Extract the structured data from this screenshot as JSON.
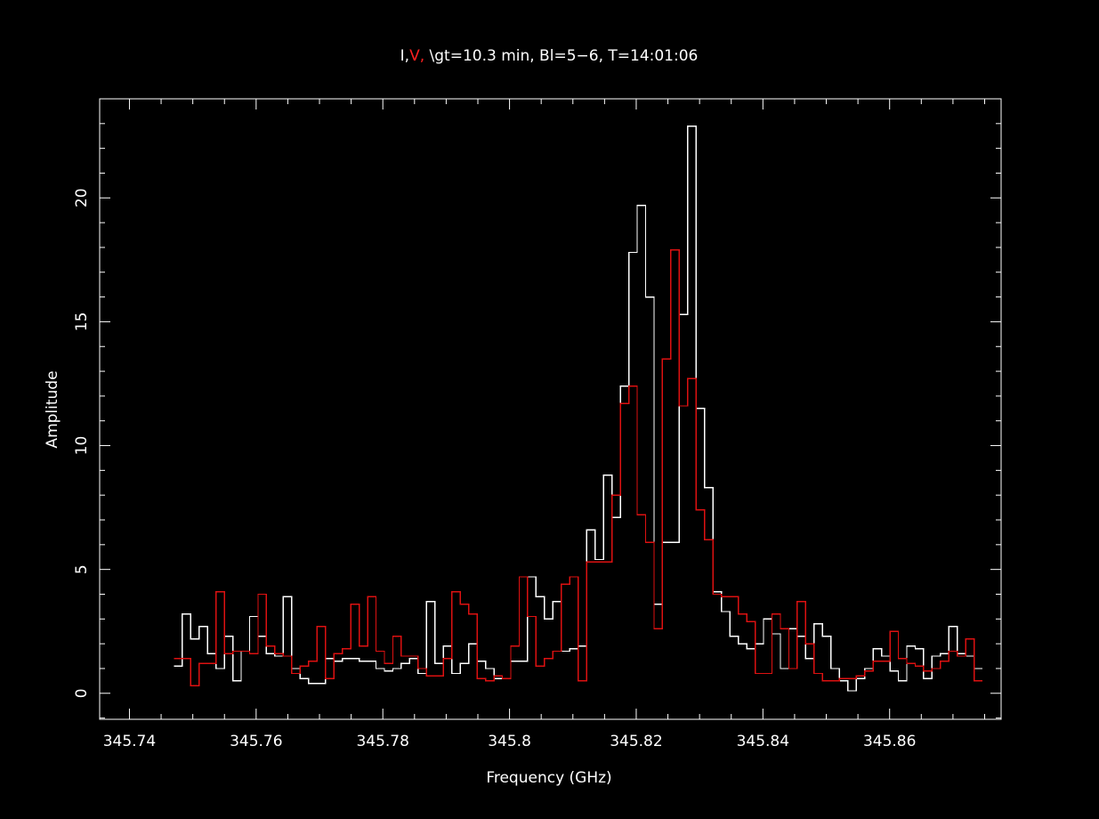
{
  "chart_data": {
    "type": "line",
    "style": "step",
    "background": "#000000",
    "title": {
      "parts": [
        {
          "text": "I,",
          "color": "#ffffff"
        },
        {
          "text": "V,",
          "color": "#ff2020"
        },
        {
          "text": " \\gt=10.3 min, Bl=5−6, T=14:01:06",
          "color": "#ffffff"
        }
      ]
    },
    "xlabel": "Frequency (GHz)",
    "ylabel": "Amplitude",
    "xlim": [
      345.7353,
      345.8776
    ],
    "ylim": [
      -1.05,
      24.0
    ],
    "xticks": [
      {
        "value": 345.74,
        "label": "345.74"
      },
      {
        "value": 345.76,
        "label": "345.76"
      },
      {
        "value": 345.78,
        "label": "345.78"
      },
      {
        "value": 345.8,
        "label": "345.8"
      },
      {
        "value": 345.82,
        "label": "345.82"
      },
      {
        "value": 345.84,
        "label": "345.84"
      },
      {
        "value": 345.86,
        "label": "345.86"
      }
    ],
    "yticks": [
      {
        "value": 0,
        "label": "0"
      },
      {
        "value": 5,
        "label": "5"
      },
      {
        "value": 10,
        "label": "10"
      },
      {
        "value": 15,
        "label": "15"
      },
      {
        "value": 20,
        "label": "20"
      }
    ],
    "x_start": 345.747,
    "x_step": 0.00133,
    "series": [
      {
        "name": "I",
        "color": "#ffffff",
        "values": [
          1.1,
          3.2,
          2.2,
          2.7,
          1.6,
          1.0,
          2.3,
          0.5,
          1.7,
          3.1,
          2.3,
          1.6,
          1.5,
          3.9,
          1.0,
          0.6,
          0.4,
          0.4,
          1.4,
          1.3,
          1.4,
          1.4,
          1.3,
          1.3,
          1.0,
          0.9,
          1.0,
          1.2,
          1.4,
          0.8,
          3.7,
          1.2,
          1.9,
          0.8,
          1.2,
          2.0,
          1.3,
          1.0,
          0.6,
          0.6,
          1.3,
          1.3,
          4.7,
          3.9,
          3.0,
          3.7,
          1.7,
          1.8,
          1.9,
          6.6,
          5.4,
          8.8,
          7.1,
          12.4,
          17.8,
          19.7,
          16.0,
          3.6,
          6.1,
          6.1,
          15.3,
          22.9,
          11.5,
          8.3,
          4.1,
          3.3,
          2.3,
          2.0,
          1.8,
          2.0,
          3.0,
          2.4,
          1.0,
          2.6,
          2.3,
          1.4,
          2.8,
          2.3,
          1.0,
          0.5,
          0.1,
          0.6,
          1.0,
          1.8,
          1.5,
          0.9,
          0.5,
          1.9,
          1.8,
          0.6,
          1.5,
          1.6,
          2.7,
          1.6,
          1.5,
          1.0
        ]
      },
      {
        "name": "V",
        "color": "#dd1111",
        "values": [
          1.4,
          1.4,
          0.3,
          1.2,
          1.2,
          4.1,
          1.6,
          1.7,
          1.7,
          1.6,
          4.0,
          1.9,
          1.6,
          1.5,
          0.8,
          1.1,
          1.3,
          2.7,
          0.6,
          1.6,
          1.8,
          3.6,
          1.9,
          3.9,
          1.7,
          1.2,
          2.3,
          1.5,
          1.5,
          1.0,
          0.7,
          0.7,
          1.4,
          4.1,
          3.6,
          3.2,
          0.6,
          0.5,
          0.7,
          0.6,
          1.9,
          4.7,
          3.1,
          1.1,
          1.4,
          1.7,
          4.4,
          4.7,
          0.5,
          5.3,
          5.3,
          5.3,
          8.0,
          11.7,
          12.4,
          7.2,
          6.1,
          2.6,
          13.5,
          17.9,
          11.6,
          12.7,
          7.4,
          6.2,
          4.0,
          3.9,
          3.9,
          3.2,
          2.9,
          0.8,
          0.8,
          3.2,
          2.6,
          1.0,
          3.7,
          2.0,
          0.8,
          0.5,
          0.5,
          0.6,
          0.6,
          0.7,
          0.9,
          1.3,
          1.3,
          2.5,
          1.4,
          1.2,
          1.1,
          0.9,
          1.0,
          1.3,
          1.7,
          1.5,
          2.2,
          0.5
        ]
      }
    ]
  }
}
